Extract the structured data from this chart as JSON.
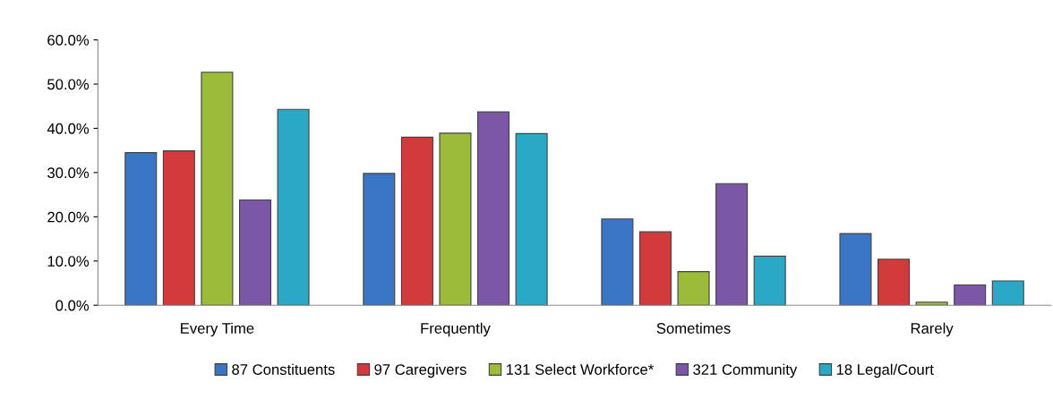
{
  "chart_data": {
    "type": "bar",
    "categories": [
      "Every Time",
      "Frequently",
      "Sometimes",
      "Rarely"
    ],
    "series": [
      {
        "name": "87 Constituents",
        "color": "#3b76c4",
        "values": [
          34.5,
          29.8,
          19.5,
          16.2
        ]
      },
      {
        "name": "97 Caregivers",
        "color": "#d13b3b",
        "values": [
          34.9,
          38.0,
          16.6,
          10.4
        ]
      },
      {
        "name": "131 Select Workforce*",
        "color": "#9bbb3b",
        "values": [
          52.7,
          38.9,
          7.6,
          0.7
        ]
      },
      {
        "name": "321 Community",
        "color": "#7c57a8",
        "values": [
          23.8,
          43.7,
          27.5,
          4.6
        ]
      },
      {
        "name": "18 Legal/Court",
        "color": "#2ba8c6",
        "values": [
          44.3,
          38.8,
          11.1,
          5.5
        ]
      }
    ],
    "ylim": [
      0,
      60
    ],
    "yticks": [
      {
        "value": 0,
        "label": "0.0%"
      },
      {
        "value": 10,
        "label": "10.0%"
      },
      {
        "value": 20,
        "label": "20.0%"
      },
      {
        "value": 30,
        "label": "30.0%"
      },
      {
        "value": 40,
        "label": "40.0%"
      },
      {
        "value": 50,
        "label": "50.0%"
      },
      {
        "value": 60,
        "label": "60.0%"
      }
    ],
    "grid": false,
    "legend": "bottom"
  }
}
